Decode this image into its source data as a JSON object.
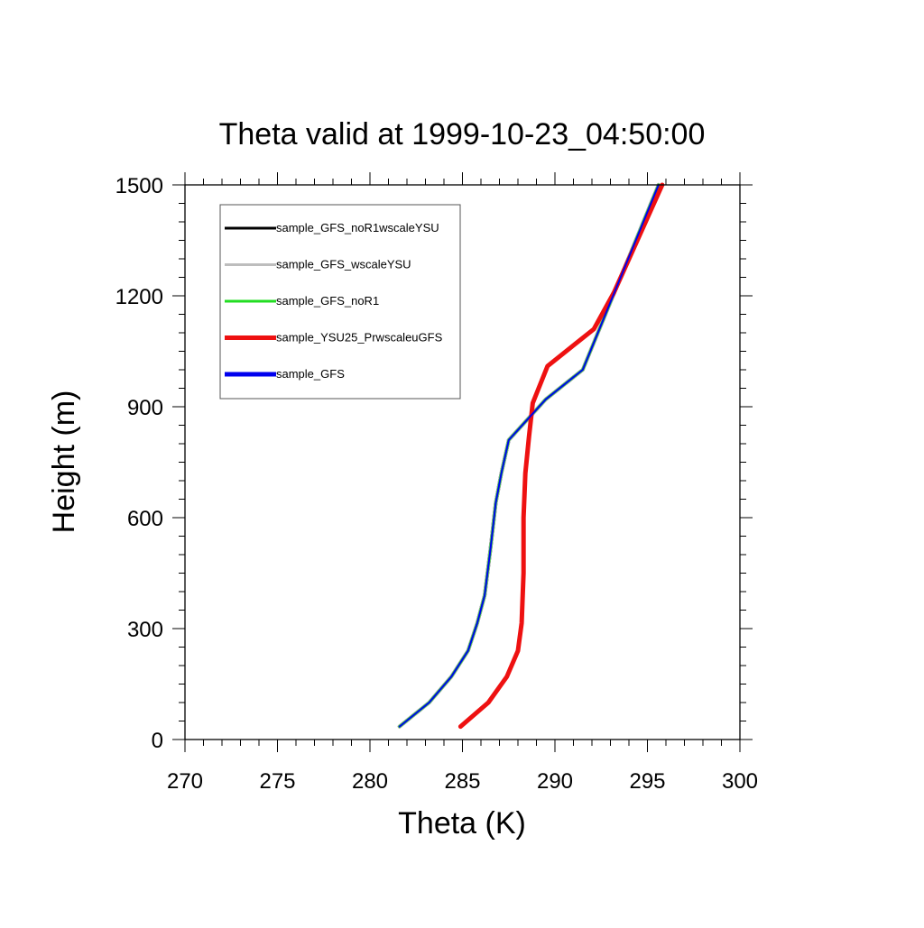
{
  "chart_data": {
    "type": "line",
    "title": "Theta valid at 1999-10-23_04:50:00",
    "xlabel": "Theta (K)",
    "ylabel": "Height (m)",
    "xlim": [
      270,
      300
    ],
    "ylim": [
      0,
      1500
    ],
    "xticks": [
      270,
      275,
      280,
      285,
      290,
      295,
      300
    ],
    "yticks": [
      0,
      300,
      600,
      900,
      1200,
      1500
    ],
    "grid": false,
    "legend_position": "top-left",
    "series": [
      {
        "name": "sample_GFS_noR1wscaleYSU",
        "color": "#000000",
        "x": [
          281.6,
          283.2,
          284.4,
          285.3,
          285.8,
          286.2,
          286.5,
          286.8,
          287.1,
          287.5,
          289.5,
          291.5,
          295.6
        ],
        "y": [
          35,
          100,
          170,
          240,
          315,
          390,
          510,
          640,
          720,
          810,
          920,
          1000,
          1500
        ]
      },
      {
        "name": "sample_GFS_wscaleYSU",
        "color": "#bdbdbd",
        "x": [
          281.6,
          283.2,
          284.4,
          285.3,
          285.8,
          286.2,
          286.5,
          286.8,
          287.1,
          287.5,
          289.5,
          291.5,
          295.6
        ],
        "y": [
          35,
          100,
          170,
          240,
          315,
          390,
          510,
          640,
          720,
          810,
          920,
          1000,
          1500
        ]
      },
      {
        "name": "sample_GFS_noR1",
        "color": "#22dd22",
        "x": [
          281.6,
          283.2,
          284.4,
          285.3,
          285.8,
          286.2,
          286.5,
          286.8,
          287.1,
          287.5,
          289.5,
          291.5,
          295.6
        ],
        "y": [
          35,
          100,
          170,
          240,
          315,
          390,
          510,
          640,
          720,
          810,
          920,
          1000,
          1500
        ]
      },
      {
        "name": "sample_YSU25_PrwscaleuGFS",
        "color": "#ee1111",
        "x": [
          284.9,
          286.4,
          287.4,
          288.0,
          288.2,
          288.3,
          288.3,
          288.4,
          288.6,
          288.8,
          289.6,
          292.1,
          293.2,
          295.8
        ],
        "y": [
          35,
          100,
          170,
          240,
          315,
          450,
          600,
          720,
          820,
          910,
          1010,
          1110,
          1210,
          1500
        ]
      },
      {
        "name": "sample_GFS",
        "color": "#0000ee",
        "x": [
          281.6,
          283.2,
          284.4,
          285.3,
          285.8,
          286.2,
          286.5,
          286.8,
          287.1,
          287.5,
          289.5,
          291.5,
          295.6
        ],
        "y": [
          35,
          100,
          170,
          240,
          315,
          390,
          510,
          640,
          720,
          810,
          920,
          1000,
          1500
        ]
      }
    ]
  }
}
